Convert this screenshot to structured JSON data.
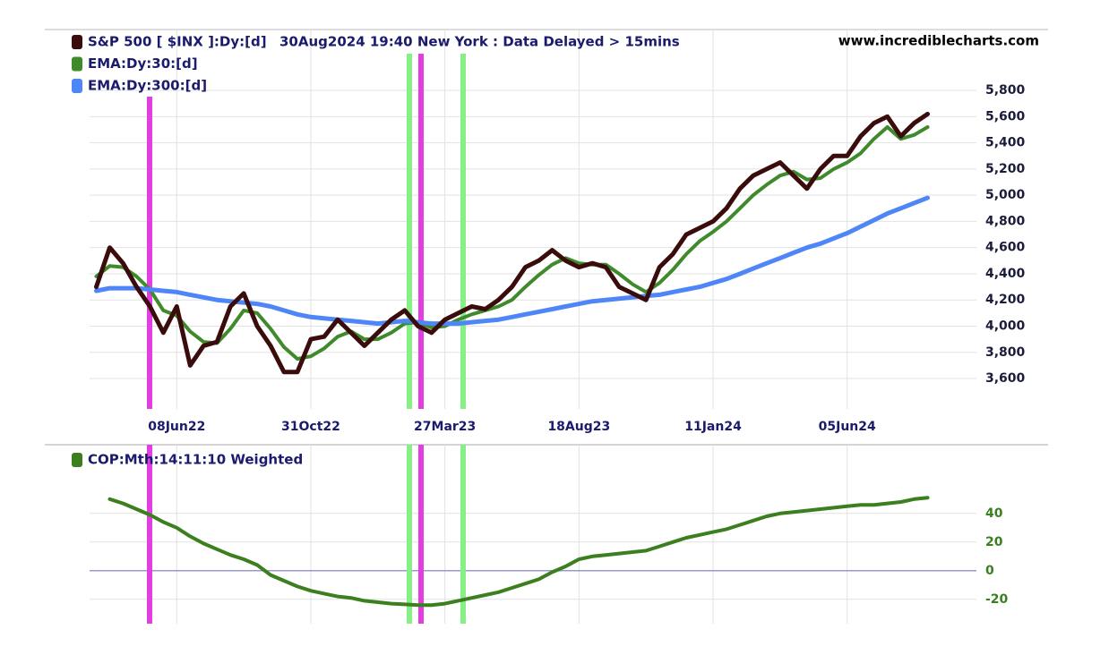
{
  "chart_data": [
    {
      "type": "line",
      "subtitle": "30Aug2024 19:40 New York : Data Delayed > 15mins",
      "source": "www.incrediblecharts.com",
      "categories": [
        null,
        null,
        null,
        null,
        null,
        null,
        "08Jun22",
        null,
        null,
        null,
        null,
        null,
        null,
        null,
        null,
        null,
        "31Oct22",
        null,
        null,
        null,
        null,
        null,
        null,
        null,
        null,
        null,
        "27Mar23",
        null,
        null,
        null,
        null,
        null,
        null,
        null,
        null,
        null,
        "18Aug23",
        null,
        null,
        null,
        null,
        null,
        null,
        null,
        null,
        null,
        "11Jan24",
        null,
        null,
        null,
        null,
        null,
        null,
        null,
        null,
        null,
        "05Jun24",
        null,
        null,
        null,
        null,
        null,
        null
      ],
      "series": [
        {
          "name": "S&P 500 [ $INX ]:Dy:[d]",
          "color": "#3a0c0c",
          "values": [
            4300,
            4600,
            4480,
            4300,
            4150,
            3950,
            4150,
            3700,
            3850,
            3880,
            4150,
            4250,
            4000,
            3850,
            3650,
            3650,
            3900,
            3920,
            4050,
            3950,
            3850,
            3950,
            4050,
            4120,
            4000,
            3950,
            4050,
            4100,
            4150,
            4130,
            4200,
            4300,
            4450,
            4500,
            4580,
            4500,
            4450,
            4480,
            4450,
            4300,
            4250,
            4200,
            4450,
            4550,
            4700,
            4750,
            4800,
            4900,
            5050,
            5150,
            5200,
            5250,
            5150,
            5050,
            5200,
            5300,
            5300,
            5450,
            5550,
            5600,
            5450,
            5550,
            5620
          ]
        },
        {
          "name": "EMA:Dy:30:[d]",
          "color": "#3f8a2a",
          "values": [
            4380,
            4460,
            4450,
            4380,
            4280,
            4120,
            4080,
            3960,
            3880,
            3870,
            3980,
            4120,
            4100,
            3980,
            3840,
            3750,
            3770,
            3830,
            3920,
            3960,
            3900,
            3900,
            3950,
            4020,
            4030,
            3990,
            4000,
            4050,
            4090,
            4120,
            4150,
            4200,
            4300,
            4390,
            4470,
            4520,
            4480,
            4470,
            4470,
            4400,
            4320,
            4260,
            4330,
            4430,
            4550,
            4650,
            4720,
            4800,
            4900,
            5000,
            5080,
            5150,
            5180,
            5120,
            5130,
            5200,
            5250,
            5320,
            5430,
            5520,
            5430,
            5460,
            5520
          ]
        },
        {
          "name": "EMA:Dy:300:[d]",
          "color": "#4f86f7",
          "values": [
            4270,
            4290,
            4290,
            4290,
            4280,
            4270,
            4260,
            4240,
            4220,
            4200,
            4190,
            4180,
            4170,
            4150,
            4120,
            4090,
            4070,
            4060,
            4050,
            4040,
            4030,
            4020,
            4030,
            4040,
            4030,
            4020,
            4020,
            4020,
            4030,
            4040,
            4050,
            4070,
            4090,
            4110,
            4130,
            4150,
            4170,
            4190,
            4200,
            4210,
            4220,
            4230,
            4240,
            4260,
            4280,
            4300,
            4330,
            4360,
            4400,
            4440,
            4480,
            4520,
            4560,
            4600,
            4630,
            4670,
            4710,
            4760,
            4810,
            4860,
            4900,
            4940,
            4980
          ]
        }
      ],
      "ylim": [
        3368,
        6265
      ],
      "yticks": [
        {
          "value": 3600,
          "label": "3,600"
        },
        {
          "value": 3800,
          "label": "3,800"
        },
        {
          "value": 4000,
          "label": "4,000"
        },
        {
          "value": 4200,
          "label": "4,200"
        },
        {
          "value": 4400,
          "label": "4,400"
        },
        {
          "value": 4600,
          "label": "4,600"
        },
        {
          "value": 4800,
          "label": "4,800"
        },
        {
          "value": 5000,
          "label": "5,000"
        },
        {
          "value": 5200,
          "label": "5,200"
        },
        {
          "value": 5400,
          "label": "5,400"
        },
        {
          "value": 5600,
          "label": "5,600"
        },
        {
          "value": 5800,
          "label": "5,800"
        }
      ],
      "grid": true
    },
    {
      "type": "line",
      "series": [
        {
          "name": "COP:Mth:14:11:10 Weighted",
          "color": "#3b7f1f",
          "values": [
            null,
            50,
            47,
            43,
            39,
            34,
            30,
            24,
            19,
            15,
            11,
            8,
            4,
            -3,
            -7,
            -11,
            -14,
            -16,
            -18,
            -19,
            -21,
            -22,
            -23,
            -23.5,
            -24,
            -24,
            -23,
            -21,
            -19,
            -17,
            -15,
            -12,
            -9,
            -6,
            -1,
            3,
            8,
            10,
            11,
            12,
            13,
            14,
            17,
            20,
            23,
            25,
            27,
            29,
            32,
            35,
            38,
            40,
            41,
            42,
            43,
            44,
            45,
            46,
            46,
            47,
            48,
            50,
            51
          ]
        }
      ],
      "ylim": [
        -37,
        88
      ],
      "yticks": [
        -20,
        0,
        20,
        40
      ],
      "grid": true,
      "zero_line": true
    }
  ]
}
